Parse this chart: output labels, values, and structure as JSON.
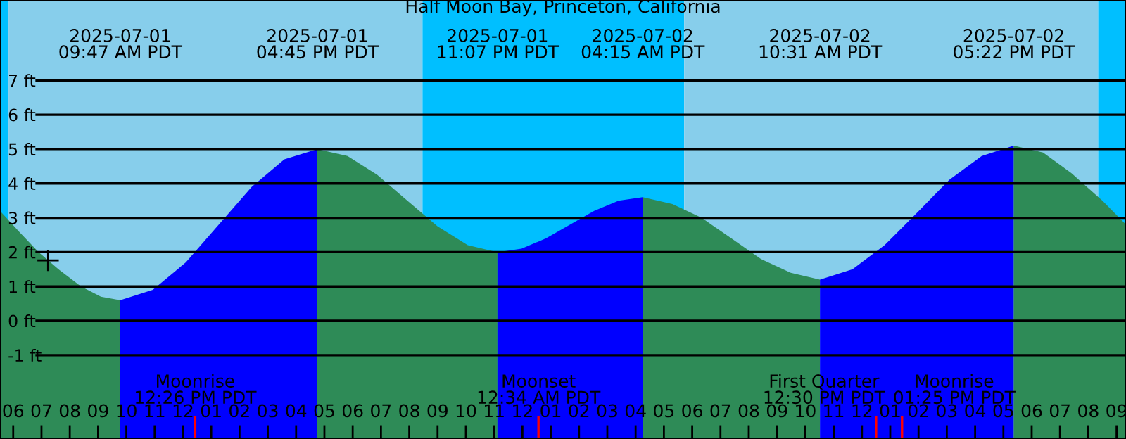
{
  "chart_data": {
    "type": "area",
    "title": "Half Moon Bay, Princeton, California",
    "xlim": [
      "2025-07-01T05:32",
      "2025-07-02T21:20"
    ],
    "ylim": [
      -3.44,
      9.34
    ],
    "xticks": [
      {
        "value": "2025-07-01T06:00",
        "label": "06"
      },
      {
        "value": "2025-07-01T07:00",
        "label": "07"
      },
      {
        "value": "2025-07-01T08:00",
        "label": "08"
      },
      {
        "value": "2025-07-01T09:00",
        "label": "09"
      },
      {
        "value": "2025-07-01T10:00",
        "label": "10"
      },
      {
        "value": "2025-07-01T11:00",
        "label": "11"
      },
      {
        "value": "2025-07-01T12:00",
        "label": "12"
      },
      {
        "value": "2025-07-01T13:00",
        "label": "01"
      },
      {
        "value": "2025-07-01T14:00",
        "label": "02"
      },
      {
        "value": "2025-07-01T15:00",
        "label": "03"
      },
      {
        "value": "2025-07-01T16:00",
        "label": "04"
      },
      {
        "value": "2025-07-01T17:00",
        "label": "05"
      },
      {
        "value": "2025-07-01T18:00",
        "label": "06"
      },
      {
        "value": "2025-07-01T19:00",
        "label": "07"
      },
      {
        "value": "2025-07-01T20:00",
        "label": "08"
      },
      {
        "value": "2025-07-01T21:00",
        "label": "09"
      },
      {
        "value": "2025-07-01T22:00",
        "label": "10"
      },
      {
        "value": "2025-07-01T23:00",
        "label": "11"
      },
      {
        "value": "2025-07-02T00:00",
        "label": "12"
      },
      {
        "value": "2025-07-02T01:00",
        "label": "01"
      },
      {
        "value": "2025-07-02T02:00",
        "label": "02"
      },
      {
        "value": "2025-07-02T03:00",
        "label": "03"
      },
      {
        "value": "2025-07-02T04:00",
        "label": "04"
      },
      {
        "value": "2025-07-02T05:00",
        "label": "05"
      },
      {
        "value": "2025-07-02T06:00",
        "label": "06"
      },
      {
        "value": "2025-07-02T07:00",
        "label": "07"
      },
      {
        "value": "2025-07-02T08:00",
        "label": "08"
      },
      {
        "value": "2025-07-02T09:00",
        "label": "09"
      },
      {
        "value": "2025-07-02T10:00",
        "label": "10"
      },
      {
        "value": "2025-07-02T11:00",
        "label": "11"
      },
      {
        "value": "2025-07-02T12:00",
        "label": "12"
      },
      {
        "value": "2025-07-02T13:00",
        "label": "01"
      },
      {
        "value": "2025-07-02T14:00",
        "label": "02"
      },
      {
        "value": "2025-07-02T15:00",
        "label": "03"
      },
      {
        "value": "2025-07-02T16:00",
        "label": "04"
      },
      {
        "value": "2025-07-02T17:00",
        "label": "05"
      },
      {
        "value": "2025-07-02T18:00",
        "label": "06"
      },
      {
        "value": "2025-07-02T19:00",
        "label": "07"
      },
      {
        "value": "2025-07-02T20:00",
        "label": "08"
      },
      {
        "value": "2025-07-02T21:00",
        "label": "09"
      }
    ],
    "yticks": [
      {
        "value": -1,
        "label": "-1 ft"
      },
      {
        "value": 0,
        "label": "0 ft"
      },
      {
        "value": 1,
        "label": "1 ft"
      },
      {
        "value": 2,
        "label": "2 ft"
      },
      {
        "value": 3,
        "label": "3 ft"
      },
      {
        "value": 4,
        "label": "4 ft"
      },
      {
        "value": 5,
        "label": "5 ft"
      },
      {
        "value": 6,
        "label": "6 ft"
      },
      {
        "value": 7,
        "label": "7 ft"
      }
    ],
    "grid": "y",
    "bands": [
      {
        "axis": "x",
        "from": "2025-07-01T05:32",
        "to": "2025-07-01T05:50",
        "color": "#00bfff"
      },
      {
        "axis": "x",
        "from": "2025-07-01T05:50",
        "to": "2025-07-01T20:28",
        "color": "#87ceeb"
      },
      {
        "axis": "x",
        "from": "2025-07-01T20:28",
        "to": "2025-07-02T05:43",
        "color": "#00bfff"
      },
      {
        "axis": "x",
        "from": "2025-07-02T05:43",
        "to": "2025-07-02T20:21",
        "color": "#87ceeb"
      },
      {
        "axis": "x",
        "from": "2025-07-02T20:21",
        "to": "2025-07-02T21:20",
        "color": "#00bfff"
      },
      {
        "axis": "x",
        "from": "2025-07-01T05:32",
        "to": "2025-07-01T09:47",
        "color": "#2e8b57"
      },
      {
        "axis": "x",
        "from": "2025-07-01T09:47",
        "to": "2025-07-01T16:45",
        "color": "#0000ff"
      },
      {
        "axis": "x",
        "from": "2025-07-01T16:45",
        "to": "2025-07-01T23:07",
        "color": "#2e8b57"
      },
      {
        "axis": "x",
        "from": "2025-07-01T23:07",
        "to": "2025-07-02T04:15",
        "color": "#0000ff"
      },
      {
        "axis": "x",
        "from": "2025-07-02T04:15",
        "to": "2025-07-02T10:31",
        "color": "#2e8b57"
      },
      {
        "axis": "x",
        "from": "2025-07-02T10:31",
        "to": "2025-07-02T17:22",
        "color": "#0000ff"
      },
      {
        "axis": "x",
        "from": "2025-07-02T17:22",
        "to": "2025-07-02T21:20",
        "color": "#2e8b57"
      }
    ],
    "ref_lines": [
      {
        "axis": "x",
        "value": "2025-07-01T12:26",
        "label": "Moonrise\n12:26 PM PDT",
        "color": "#ff0000"
      },
      {
        "axis": "x",
        "value": "2025-07-02T00:34",
        "label": "Moonset\n12:34 AM PDT",
        "color": "#ff0000"
      },
      {
        "axis": "x",
        "value": "2025-07-02T12:30",
        "label": "First Quarter\n12:30 PM PDT",
        "color": "#ff0000"
      },
      {
        "axis": "x",
        "value": "2025-07-02T13:25",
        "label": "Moonrise\n01:25 PM PDT",
        "color": "#ff0000"
      }
    ],
    "series": [
      {
        "color": "#2e8b57",
        "x": [
          "2025-07-01T05:32",
          "2025-07-01T06:12",
          "2025-07-01T06:54",
          "2025-07-01T07:36",
          "2025-07-01T08:24",
          "2025-07-01T09:06",
          "2025-07-01T09:47"
        ],
        "values": [
          3.2,
          2.6,
          2.0,
          1.5,
          1.0,
          0.7,
          0.6
        ]
      },
      {
        "color": "#0000ff",
        "x": [
          "2025-07-01T09:47",
          "2025-07-01T10:56",
          "2025-07-01T12:06",
          "2025-07-01T13:16",
          "2025-07-01T14:26",
          "2025-07-01T15:35",
          "2025-07-01T16:45"
        ],
        "values": [
          0.6,
          0.9,
          1.7,
          2.8,
          3.9,
          4.7,
          5.0
        ]
      },
      {
        "color": "#2e8b57",
        "x": [
          "2025-07-01T16:45",
          "2025-07-01T17:49",
          "2025-07-01T18:52",
          "2025-07-01T19:56",
          "2025-07-01T21:00",
          "2025-07-01T22:04",
          "2025-07-01T23:07"
        ],
        "values": [
          5.0,
          4.8,
          4.25,
          3.5,
          2.75,
          2.2,
          2.0
        ]
      },
      {
        "color": "#0000ff",
        "x": [
          "2025-07-01T23:07",
          "2025-07-01T23:58",
          "2025-07-02T00:50",
          "2025-07-02T01:41",
          "2025-07-02T02:32",
          "2025-07-02T03:24",
          "2025-07-02T04:15"
        ],
        "values": [
          2.0,
          2.1,
          2.4,
          2.8,
          3.2,
          3.5,
          3.6
        ]
      },
      {
        "color": "#2e8b57",
        "x": [
          "2025-07-02T04:15",
          "2025-07-02T05:18",
          "2025-07-02T06:20",
          "2025-07-02T07:23",
          "2025-07-02T08:26",
          "2025-07-02T09:29",
          "2025-07-02T10:31"
        ],
        "values": [
          3.6,
          3.4,
          3.0,
          2.4,
          1.8,
          1.4,
          1.2
        ]
      },
      {
        "color": "#0000ff",
        "x": [
          "2025-07-02T10:31",
          "2025-07-02T11:40",
          "2025-07-02T12:48",
          "2025-07-02T13:57",
          "2025-07-02T15:05",
          "2025-07-02T16:14",
          "2025-07-02T17:22"
        ],
        "values": [
          1.2,
          1.5,
          2.2,
          3.15,
          4.1,
          4.8,
          5.1
        ]
      },
      {
        "color": "#2e8b57",
        "x": [
          "2025-07-02T17:22",
          "2025-07-02T18:24",
          "2025-07-02T19:24",
          "2025-07-02T20:30",
          "2025-07-02T21:20"
        ],
        "values": [
          5.1,
          4.9,
          4.3,
          3.5,
          2.8
        ]
      },
      {
        "type": "scatter",
        "marker": "cross",
        "color": "#000000",
        "x": [
          "2025-07-01T07:14"
        ],
        "values": [
          1.76
        ]
      }
    ],
    "annotations": [
      "2025-07-01\n09:47 AM PDT",
      "2025-07-01\n04:45 PM PDT",
      "2025-07-01\n11:07 PM PDT",
      "2025-07-02\n04:15 AM PDT",
      "2025-07-02\n10:31 AM PDT",
      "2025-07-02\n05:22 PM PDT"
    ]
  }
}
